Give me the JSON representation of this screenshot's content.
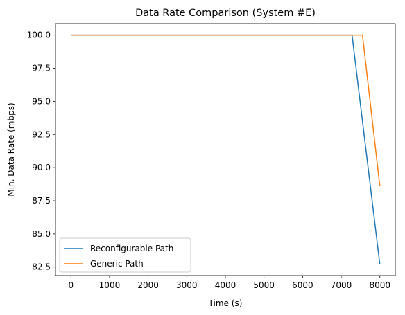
{
  "chart_data": {
    "type": "line",
    "title": "Data Rate Comparison (System #E)",
    "xlabel": "Time (s)",
    "ylabel": "Min. Data Rate (mbps)",
    "xlim": [
      -400,
      8400
    ],
    "ylim": [
      81.86,
      100.87
    ],
    "xticks": [
      0,
      1000,
      2000,
      3000,
      4000,
      5000,
      6000,
      7000,
      8000
    ],
    "xtick_labels": [
      "0",
      "1000",
      "2000",
      "3000",
      "4000",
      "5000",
      "6000",
      "7000",
      "8000"
    ],
    "yticks": [
      82.5,
      85.0,
      87.5,
      90.0,
      92.5,
      95.0,
      97.5,
      100.0
    ],
    "ytick_labels": [
      "82.5",
      "85.0",
      "87.5",
      "90.0",
      "92.5",
      "95.0",
      "97.5",
      "100.0"
    ],
    "grid": false,
    "legend_position": "lower-left",
    "series": [
      {
        "name": "Reconfigurable Path",
        "color": "#1f77b4",
        "x": [
          0,
          7280,
          8000
        ],
        "y": [
          100.0,
          100.0,
          82.7
        ]
      },
      {
        "name": "Generic Path",
        "color": "#ff7f0e",
        "x": [
          0,
          7550,
          8000
        ],
        "y": [
          100.0,
          100.0,
          88.6
        ]
      }
    ]
  }
}
